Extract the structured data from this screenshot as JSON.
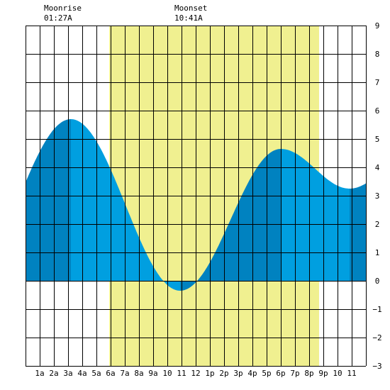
{
  "chart_data": {
    "type": "area",
    "title": "",
    "xlabel": "",
    "ylabel": "",
    "ylim": [
      -3,
      9
    ],
    "yticks": [
      9,
      8,
      7,
      6,
      5,
      4,
      3,
      2,
      1,
      0,
      -1,
      -2,
      -3
    ],
    "hour_range": [
      0,
      24
    ],
    "x_tick_labels": [
      "1a",
      "2a",
      "3a",
      "4a",
      "5a",
      "6a",
      "7a",
      "8a",
      "9a",
      "10",
      "11",
      "12",
      "1p",
      "2p",
      "3p",
      "4p",
      "5p",
      "6p",
      "7p",
      "8p",
      "9p",
      "10",
      "11"
    ],
    "grid": true,
    "daylight_hours": [
      5.9,
      20.7
    ],
    "tide_extremes": [
      {
        "hour": 3.2,
        "height": 5.7
      },
      {
        "hour": 10.9,
        "height": -0.35
      },
      {
        "hour": 18.0,
        "height": 4.65
      },
      {
        "hour": 22.85,
        "height": 3.25
      }
    ],
    "tide_hourly": {
      "x": [
        0,
        1,
        2,
        3,
        4,
        5,
        6,
        7,
        8,
        9,
        10,
        11,
        12,
        13,
        14,
        15,
        16,
        17,
        18,
        19,
        20,
        21,
        22,
        23,
        24
      ],
      "y": [
        4.2,
        4.84,
        5.38,
        5.7,
        5.55,
        4.83,
        3.68,
        2.35,
        1.1,
        0.2,
        -0.3,
        -0.34,
        0.17,
        1.12,
        2.26,
        3.37,
        4.2,
        4.6,
        4.65,
        4.35,
        3.92,
        3.53,
        3.29,
        3.27,
        3.5
      ]
    },
    "moon_events": [
      {
        "label": "Moonrise",
        "time": "01:27A"
      },
      {
        "label": "Moonset",
        "time": "10:41A"
      }
    ],
    "colors": {
      "daylight": "#f0f090",
      "tide_light": "#009fe0",
      "tide_dark": "#0082c0",
      "grid": "#000000"
    }
  }
}
